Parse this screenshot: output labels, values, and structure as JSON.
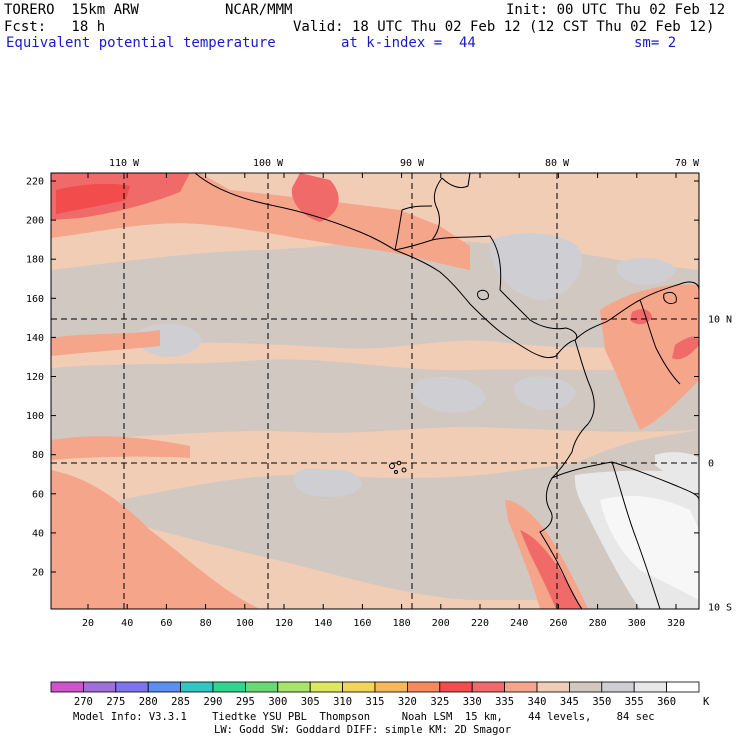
{
  "header": {
    "model": "TORERO  15km ARW",
    "org": "NCAR/MMM",
    "init": "Init: 00 UTC Thu 02 Feb 12",
    "fcst": "Fcst:   18 h",
    "valid": "Valid: 18 UTC Thu 02 Feb 12 (12 CST Thu 02 Feb 12)",
    "field": "Equivalent potential temperature",
    "level": "at k-index =  44",
    "smooth": "sm= 2"
  },
  "map": {
    "top_lon_labels": [
      "110 W",
      "100 W",
      "90 W",
      "80 W",
      "70 W"
    ],
    "right_lat_labels": [
      "10 N",
      "0",
      "10 S"
    ],
    "y_grid_labels": [
      "220",
      "200",
      "180",
      "160",
      "140",
      "120",
      "100",
      "80",
      "60",
      "40",
      "20"
    ],
    "x_grid_labels": [
      "20",
      "40",
      "60",
      "80",
      "100",
      "120",
      "140",
      "160",
      "180",
      "200",
      "220",
      "240",
      "260",
      "280",
      "300",
      "320"
    ],
    "grid_line_color": "#000000",
    "coast_color": "#000000"
  },
  "colorbar": {
    "unit": "K",
    "tick_labels": [
      "270",
      "275",
      "280",
      "285",
      "290",
      "295",
      "300",
      "305",
      "310",
      "315",
      "320",
      "325",
      "330",
      "335",
      "340",
      "345",
      "350",
      "355",
      "360"
    ],
    "colors": [
      "#cc55cc",
      "#a070d8",
      "#7f74ee",
      "#5a8ef0",
      "#33c4c4",
      "#33d490",
      "#6ad873",
      "#a6e46a",
      "#dde860",
      "#f3d45a",
      "#f6b85a",
      "#f58a5e",
      "#f24c4c",
      "#f06a6a",
      "#f5a58a",
      "#f2cdb6",
      "#d2c8c2",
      "#cfcfd3",
      "#e8e8e8",
      "#ffffff"
    ]
  },
  "footer": {
    "line1": "Model Info: V3.3.1    Tiedtke YSU PBL  Thompson     Noah LSM  15 km,    44 levels,    84 sec",
    "line2": "LW: Godd SW: Goddard DIFF: simple KM: 2D Smagor"
  }
}
